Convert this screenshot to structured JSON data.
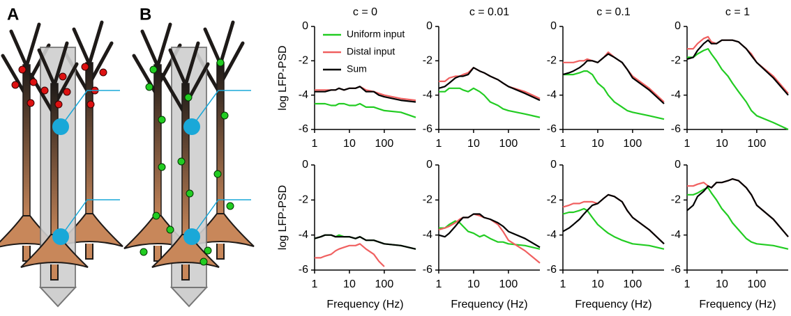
{
  "panel_labels": [
    "A",
    "B"
  ],
  "chart_data": [
    {
      "type": "line",
      "title": "c = 0",
      "ylabel": "log LFP-PSD",
      "xscale": "log",
      "legend": "upper left",
      "x": [
        1,
        1.5,
        2,
        3,
        4,
        5,
        7,
        10,
        15,
        20,
        30,
        50,
        70,
        100,
        300,
        800
      ],
      "xlim": [
        1,
        800
      ],
      "xticks": [
        1,
        10,
        100
      ],
      "ylim": [
        -6,
        0
      ],
      "yticks": [
        0,
        -2,
        -4,
        -6
      ],
      "series": [
        {
          "name": "Uniform input",
          "color": "#22cc22",
          "values": [
            -4.5,
            -4.5,
            -4.5,
            -4.6,
            -4.6,
            -4.5,
            -4.5,
            -4.6,
            -4.6,
            -4.5,
            -4.7,
            -4.7,
            -4.8,
            -4.9,
            -5.0,
            -5.3
          ]
        },
        {
          "name": "Distal input",
          "color": "#f06060",
          "values": [
            -3.7,
            -3.7,
            -3.7,
            -3.7,
            -3.7,
            -3.6,
            -3.7,
            -3.6,
            -3.6,
            -3.5,
            -3.7,
            -3.8,
            -3.9,
            -4.0,
            -4.2,
            -4.3
          ]
        },
        {
          "name": "Sum",
          "color": "#000000",
          "values": [
            -3.8,
            -3.8,
            -3.8,
            -3.7,
            -3.7,
            -3.6,
            -3.7,
            -3.6,
            -3.6,
            -3.5,
            -3.8,
            -3.8,
            -4.0,
            -4.1,
            -4.3,
            -4.4
          ]
        }
      ]
    },
    {
      "type": "line",
      "title": "c = 0.01",
      "xscale": "log",
      "x": [
        1,
        1.5,
        2,
        3,
        4,
        5,
        7,
        10,
        15,
        20,
        30,
        50,
        70,
        100,
        300,
        800
      ],
      "xlim": [
        1,
        800
      ],
      "xticks": [
        1,
        10,
        100
      ],
      "ylim": [
        -6,
        0
      ],
      "yticks": [
        0,
        -2,
        -4,
        -6
      ],
      "series": [
        {
          "color": "#22cc22",
          "values": [
            -3.8,
            -3.8,
            -3.6,
            -3.6,
            -3.6,
            -3.7,
            -3.8,
            -3.6,
            -3.8,
            -4.0,
            -4.4,
            -4.6,
            -4.8,
            -4.9,
            -5.1,
            -5.3
          ]
        },
        {
          "color": "#f06060",
          "values": [
            -3.2,
            -3.2,
            -3.0,
            -2.9,
            -2.9,
            -2.8,
            -2.7,
            -2.4,
            -2.6,
            -2.7,
            -2.9,
            -3.1,
            -3.3,
            -3.5,
            -3.8,
            -4.2
          ]
        },
        {
          "color": "#000000",
          "values": [
            -3.6,
            -3.5,
            -3.3,
            -3.0,
            -2.9,
            -2.9,
            -2.8,
            -2.4,
            -2.6,
            -2.7,
            -2.9,
            -3.1,
            -3.3,
            -3.5,
            -3.9,
            -4.3
          ]
        }
      ]
    },
    {
      "type": "line",
      "title": "c = 0.1",
      "xscale": "log",
      "x": [
        1,
        1.5,
        2,
        3,
        4,
        5,
        7,
        10,
        15,
        20,
        30,
        50,
        70,
        100,
        300,
        800
      ],
      "xlim": [
        1,
        800
      ],
      "xticks": [
        1,
        10,
        100
      ],
      "ylim": [
        -6,
        0
      ],
      "yticks": [
        0,
        -2,
        -4,
        -6
      ],
      "series": [
        {
          "color": "#22cc22",
          "values": [
            -2.8,
            -2.8,
            -2.8,
            -2.7,
            -2.6,
            -2.6,
            -2.8,
            -3.3,
            -3.6,
            -4.0,
            -4.4,
            -4.7,
            -4.9,
            -5.0,
            -5.2,
            -5.4
          ]
        },
        {
          "color": "#f06060",
          "values": [
            -2.1,
            -2.1,
            -2.1,
            -2.0,
            -2.0,
            -1.9,
            -2.0,
            -2.1,
            -1.8,
            -1.5,
            -1.8,
            -2.1,
            -2.5,
            -2.9,
            -3.6,
            -4.4
          ]
        },
        {
          "color": "#000000",
          "values": [
            -2.8,
            -2.7,
            -2.6,
            -2.4,
            -2.2,
            -2.0,
            -2.0,
            -2.1,
            -1.8,
            -1.6,
            -1.8,
            -2.1,
            -2.5,
            -3.0,
            -3.7,
            -4.5
          ]
        }
      ]
    },
    {
      "type": "line",
      "title": "c = 1",
      "xscale": "log",
      "x": [
        1,
        1.5,
        2,
        3,
        4,
        5,
        7,
        10,
        15,
        20,
        30,
        50,
        70,
        100,
        300,
        800
      ],
      "xlim": [
        1,
        800
      ],
      "xticks": [
        1,
        10,
        100
      ],
      "ylim": [
        -6,
        0
      ],
      "yticks": [
        0,
        -2,
        -4,
        -6
      ],
      "series": [
        {
          "color": "#22cc22",
          "values": [
            -1.8,
            -1.8,
            -1.6,
            -1.4,
            -1.3,
            -1.6,
            -2.0,
            -2.5,
            -2.9,
            -3.3,
            -3.8,
            -4.4,
            -4.9,
            -5.2,
            -5.6,
            -6.0
          ]
        },
        {
          "color": "#f06060",
          "values": [
            -1.3,
            -1.3,
            -1.0,
            -0.7,
            -0.6,
            -0.9,
            -1.0,
            -0.8,
            -0.8,
            -0.8,
            -0.9,
            -1.3,
            -1.6,
            -2.1,
            -2.9,
            -3.9
          ]
        },
        {
          "color": "#000000",
          "values": [
            -1.9,
            -1.8,
            -1.4,
            -1.0,
            -0.8,
            -1.0,
            -1.0,
            -0.8,
            -0.8,
            -0.8,
            -0.9,
            -1.3,
            -1.7,
            -2.1,
            -3.0,
            -4.0
          ]
        }
      ]
    },
    {
      "type": "line",
      "ylabel": "log LFP-PSD",
      "xlabel": "Frequency (Hz)",
      "xscale": "log",
      "x": [
        1,
        1.5,
        2,
        3,
        4,
        5,
        7,
        10,
        15,
        20,
        30,
        50,
        70,
        100,
        300,
        800
      ],
      "xlim": [
        1,
        800
      ],
      "xticks": [
        1,
        10,
        100
      ],
      "ylim": [
        -6,
        0
      ],
      "yticks": [
        0,
        -2,
        -4,
        -6
      ],
      "series": [
        {
          "color": "#22cc22",
          "values": [
            -4.2,
            -4.1,
            -4.0,
            -4.0,
            -4.1,
            -4.0,
            -4.1,
            -4.1,
            -4.2,
            -4.1,
            -4.3,
            -4.3,
            -4.4,
            -4.5,
            -4.6,
            -4.8
          ]
        },
        {
          "color": "#f06060",
          "values": [
            -5.3,
            -5.3,
            -5.2,
            -5.1,
            -4.9,
            -4.8,
            -4.7,
            -4.6,
            -4.6,
            -4.5,
            -4.8,
            -5.1,
            -5.5,
            -5.8,
            null,
            null
          ]
        },
        {
          "color": "#000000",
          "values": [
            -4.2,
            -4.1,
            -4.0,
            -4.0,
            -4.1,
            -4.1,
            -4.1,
            -4.1,
            -4.2,
            -4.1,
            -4.3,
            -4.3,
            -4.4,
            -4.5,
            -4.6,
            -4.8
          ]
        }
      ]
    },
    {
      "type": "line",
      "xlabel": "Frequency (Hz)",
      "xscale": "log",
      "x": [
        1,
        1.5,
        2,
        3,
        4,
        5,
        7,
        10,
        15,
        20,
        30,
        50,
        70,
        100,
        300,
        800
      ],
      "xlim": [
        1,
        800
      ],
      "xticks": [
        1,
        10,
        100
      ],
      "ylim": [
        -6,
        0
      ],
      "yticks": [
        0,
        -2,
        -4,
        -6
      ],
      "series": [
        {
          "color": "#22cc22",
          "values": [
            -3.6,
            -3.6,
            -3.4,
            -3.2,
            -3.3,
            -3.5,
            -3.8,
            -3.9,
            -4.1,
            -4.0,
            -4.2,
            -4.4,
            -4.4,
            -4.5,
            -4.6,
            -4.8
          ]
        },
        {
          "color": "#f06060",
          "values": [
            -3.7,
            -3.6,
            -3.5,
            -3.3,
            -3.1,
            -3.0,
            -3.0,
            -2.8,
            -2.9,
            -3.0,
            -3.1,
            -3.4,
            -3.8,
            -4.3,
            -4.9,
            -5.6
          ]
        },
        {
          "color": "#000000",
          "values": [
            -4.0,
            -4.1,
            -3.9,
            -3.5,
            -3.2,
            -3.0,
            -3.0,
            -2.8,
            -2.8,
            -3.0,
            -3.1,
            -3.3,
            -3.5,
            -3.8,
            -4.2,
            -4.7
          ]
        }
      ]
    },
    {
      "type": "line",
      "xlabel": "Frequency (Hz)",
      "xscale": "log",
      "x": [
        1,
        1.5,
        2,
        3,
        4,
        5,
        7,
        10,
        15,
        20,
        30,
        50,
        70,
        100,
        300,
        800
      ],
      "xlim": [
        1,
        800
      ],
      "xticks": [
        1,
        10,
        100
      ],
      "ylim": [
        -6,
        0
      ],
      "yticks": [
        0,
        -2,
        -4,
        -6
      ],
      "series": [
        {
          "color": "#22cc22",
          "values": [
            -2.8,
            -2.7,
            -2.7,
            -2.6,
            -2.5,
            -2.6,
            -3.0,
            -3.4,
            -3.7,
            -3.9,
            -4.1,
            -4.3,
            -4.4,
            -4.5,
            -4.6,
            -4.8
          ]
        },
        {
          "color": "#f06060",
          "values": [
            -2.4,
            -2.3,
            -2.2,
            -2.2,
            -2.1,
            -2.1,
            -2.1,
            -2.2,
            -1.9,
            -1.7,
            -1.8,
            -2.1,
            -2.6,
            -3.0,
            -3.7,
            -4.5
          ]
        },
        {
          "color": "#000000",
          "values": [
            -3.8,
            -3.6,
            -3.4,
            -3.1,
            -2.8,
            -2.6,
            -2.3,
            -2.2,
            -1.9,
            -1.7,
            -1.8,
            -2.1,
            -2.6,
            -3.0,
            -3.7,
            -4.5
          ]
        }
      ]
    },
    {
      "type": "line",
      "xlabel": "Frequency (Hz)",
      "xscale": "log",
      "x": [
        1,
        1.5,
        2,
        3,
        4,
        5,
        7,
        10,
        15,
        20,
        30,
        50,
        70,
        100,
        300,
        800
      ],
      "xlim": [
        1,
        800
      ],
      "xticks": [
        1,
        10,
        100
      ],
      "ylim": [
        -6,
        0
      ],
      "yticks": [
        0,
        -2,
        -4,
        -6
      ],
      "series": [
        {
          "color": "#22cc22",
          "values": [
            -1.7,
            -1.7,
            -1.6,
            -1.4,
            -1.3,
            -1.6,
            -2.0,
            -2.5,
            -2.9,
            -3.3,
            -3.7,
            -4.2,
            -4.4,
            -4.5,
            -4.6,
            -4.8
          ]
        },
        {
          "color": "#f06060",
          "values": [
            -1.2,
            -1.2,
            -1.1,
            -1.0,
            -1.2,
            -1.3,
            -1.0,
            -1.0,
            -0.9,
            -0.8,
            -0.9,
            -1.3,
            -1.7,
            -2.3,
            -3.1,
            -4.1
          ]
        },
        {
          "color": "#000000",
          "values": [
            -2.6,
            -2.3,
            -1.8,
            -1.5,
            -1.2,
            -1.3,
            -1.0,
            -1.0,
            -0.9,
            -0.8,
            -0.9,
            -1.3,
            -1.7,
            -2.3,
            -3.1,
            -4.1
          ]
        }
      ]
    }
  ]
}
